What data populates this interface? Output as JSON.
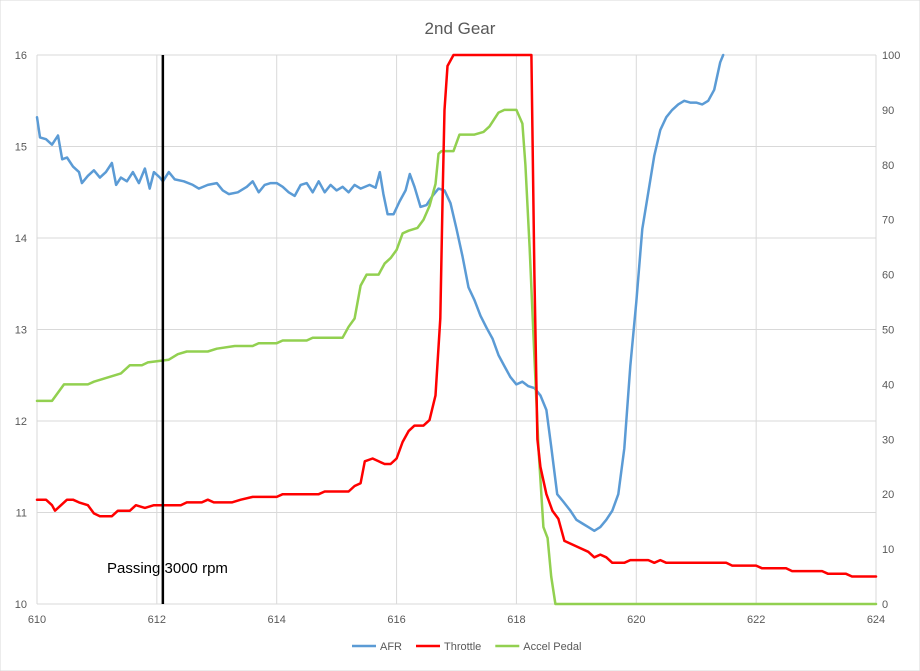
{
  "chart_data": {
    "type": "line",
    "title": "2nd Gear",
    "xlim": [
      610,
      624
    ],
    "x_ticks": [
      "610",
      "612",
      "614",
      "616",
      "618",
      "620",
      "622",
      "624"
    ],
    "y_left_lim": [
      10,
      16
    ],
    "y_left_ticks": [
      "10",
      "11",
      "12",
      "13",
      "14",
      "15",
      "16"
    ],
    "y_right_lim": [
      0,
      100
    ],
    "y_right_ticks": [
      "0",
      "10",
      "20",
      "30",
      "40",
      "50",
      "60",
      "70",
      "80",
      "90",
      "100"
    ],
    "grid": true,
    "legend_position": "bottom",
    "annotation": {
      "text": "Passing 3000 rpm",
      "x": 612.1
    },
    "series": [
      {
        "name": "AFR",
        "axis": "left",
        "color": "#5b9bd5",
        "points": [
          [
            610.0,
            15.32
          ],
          [
            610.05,
            15.1
          ],
          [
            610.15,
            15.08
          ],
          [
            610.25,
            15.02
          ],
          [
            610.35,
            15.12
          ],
          [
            610.42,
            14.86
          ],
          [
            610.5,
            14.88
          ],
          [
            610.6,
            14.78
          ],
          [
            610.7,
            14.72
          ],
          [
            610.75,
            14.6
          ],
          [
            610.85,
            14.68
          ],
          [
            610.95,
            14.74
          ],
          [
            611.05,
            14.66
          ],
          [
            611.15,
            14.72
          ],
          [
            611.25,
            14.82
          ],
          [
            611.32,
            14.58
          ],
          [
            611.4,
            14.66
          ],
          [
            611.5,
            14.62
          ],
          [
            611.6,
            14.72
          ],
          [
            611.7,
            14.6
          ],
          [
            611.8,
            14.76
          ],
          [
            611.88,
            14.54
          ],
          [
            611.95,
            14.72
          ],
          [
            612.05,
            14.66
          ],
          [
            612.1,
            14.62
          ],
          [
            612.2,
            14.72
          ],
          [
            612.3,
            14.64
          ],
          [
            612.45,
            14.62
          ],
          [
            612.6,
            14.58
          ],
          [
            612.7,
            14.54
          ],
          [
            612.85,
            14.58
          ],
          [
            613.0,
            14.6
          ],
          [
            613.1,
            14.52
          ],
          [
            613.2,
            14.48
          ],
          [
            613.35,
            14.5
          ],
          [
            613.5,
            14.56
          ],
          [
            613.6,
            14.62
          ],
          [
            613.7,
            14.5
          ],
          [
            613.8,
            14.58
          ],
          [
            613.9,
            14.6
          ],
          [
            614.0,
            14.6
          ],
          [
            614.1,
            14.56
          ],
          [
            614.2,
            14.5
          ],
          [
            614.3,
            14.46
          ],
          [
            614.4,
            14.58
          ],
          [
            614.5,
            14.6
          ],
          [
            614.6,
            14.5
          ],
          [
            614.7,
            14.62
          ],
          [
            614.8,
            14.5
          ],
          [
            614.9,
            14.58
          ],
          [
            615.0,
            14.52
          ],
          [
            615.1,
            14.56
          ],
          [
            615.2,
            14.5
          ],
          [
            615.3,
            14.58
          ],
          [
            615.4,
            14.54
          ],
          [
            615.55,
            14.58
          ],
          [
            615.65,
            14.55
          ],
          [
            615.72,
            14.72
          ],
          [
            615.78,
            14.48
          ],
          [
            615.85,
            14.26
          ],
          [
            615.95,
            14.26
          ],
          [
            616.05,
            14.4
          ],
          [
            616.15,
            14.52
          ],
          [
            616.22,
            14.7
          ],
          [
            616.3,
            14.56
          ],
          [
            616.4,
            14.34
          ],
          [
            616.5,
            14.36
          ],
          [
            616.6,
            14.46
          ],
          [
            616.7,
            14.54
          ],
          [
            616.8,
            14.52
          ],
          [
            616.9,
            14.38
          ],
          [
            617.0,
            14.1
          ],
          [
            617.1,
            13.8
          ],
          [
            617.2,
            13.46
          ],
          [
            617.3,
            13.32
          ],
          [
            617.4,
            13.15
          ],
          [
            617.5,
            13.02
          ],
          [
            617.6,
            12.9
          ],
          [
            617.7,
            12.72
          ],
          [
            617.8,
            12.6
          ],
          [
            617.9,
            12.48
          ],
          [
            618.0,
            12.4
          ],
          [
            618.1,
            12.43
          ],
          [
            618.2,
            12.38
          ],
          [
            618.3,
            12.36
          ],
          [
            618.4,
            12.28
          ],
          [
            618.5,
            12.12
          ],
          [
            618.58,
            11.72
          ],
          [
            618.68,
            11.2
          ],
          [
            618.78,
            11.12
          ],
          [
            618.9,
            11.02
          ],
          [
            619.0,
            10.92
          ],
          [
            619.1,
            10.88
          ],
          [
            619.2,
            10.84
          ],
          [
            619.3,
            10.8
          ],
          [
            619.4,
            10.84
          ],
          [
            619.5,
            10.92
          ],
          [
            619.6,
            11.02
          ],
          [
            619.7,
            11.2
          ],
          [
            619.8,
            11.7
          ],
          [
            619.9,
            12.6
          ],
          [
            620.0,
            13.3
          ],
          [
            620.1,
            14.1
          ],
          [
            620.2,
            14.5
          ],
          [
            620.3,
            14.9
          ],
          [
            620.4,
            15.18
          ],
          [
            620.5,
            15.32
          ],
          [
            620.6,
            15.4
          ],
          [
            620.7,
            15.46
          ],
          [
            620.8,
            15.5
          ],
          [
            620.9,
            15.48
          ],
          [
            621.0,
            15.48
          ],
          [
            621.1,
            15.46
          ],
          [
            621.2,
            15.5
          ],
          [
            621.3,
            15.62
          ],
          [
            621.4,
            15.92
          ],
          [
            621.45,
            16.0
          ]
        ]
      },
      {
        "name": "Throttle",
        "axis": "right",
        "color": "#ff0000",
        "points": [
          [
            610.0,
            19
          ],
          [
            610.15,
            19
          ],
          [
            610.25,
            18
          ],
          [
            610.3,
            17
          ],
          [
            610.4,
            18
          ],
          [
            610.5,
            19
          ],
          [
            610.6,
            19
          ],
          [
            610.7,
            18.5
          ],
          [
            610.85,
            18
          ],
          [
            610.95,
            16.5
          ],
          [
            611.05,
            16
          ],
          [
            611.25,
            16
          ],
          [
            611.35,
            17
          ],
          [
            611.55,
            17
          ],
          [
            611.65,
            18
          ],
          [
            611.8,
            17.5
          ],
          [
            611.95,
            18
          ],
          [
            612.1,
            18
          ],
          [
            612.4,
            18
          ],
          [
            612.5,
            18.5
          ],
          [
            612.75,
            18.5
          ],
          [
            612.85,
            19
          ],
          [
            612.95,
            18.5
          ],
          [
            613.25,
            18.5
          ],
          [
            613.4,
            19
          ],
          [
            613.6,
            19.5
          ],
          [
            614.0,
            19.5
          ],
          [
            614.1,
            20
          ],
          [
            614.7,
            20
          ],
          [
            614.8,
            20.5
          ],
          [
            615.2,
            20.5
          ],
          [
            615.3,
            21.5
          ],
          [
            615.4,
            22
          ],
          [
            615.47,
            26
          ],
          [
            615.6,
            26.5
          ],
          [
            615.7,
            26
          ],
          [
            615.8,
            25.5
          ],
          [
            615.9,
            25.5
          ],
          [
            616.0,
            26.5
          ],
          [
            616.1,
            29.5
          ],
          [
            616.2,
            31.5
          ],
          [
            616.3,
            32.5
          ],
          [
            616.45,
            32.5
          ],
          [
            616.55,
            33.5
          ],
          [
            616.65,
            38
          ],
          [
            616.73,
            52
          ],
          [
            616.77,
            75
          ],
          [
            616.8,
            90
          ],
          [
            616.85,
            98
          ],
          [
            616.95,
            100
          ],
          [
            618.25,
            100
          ],
          [
            618.3,
            60
          ],
          [
            618.35,
            30
          ],
          [
            618.4,
            25
          ],
          [
            618.5,
            20
          ],
          [
            618.6,
            17
          ],
          [
            618.7,
            15.5
          ],
          [
            618.8,
            11.5
          ],
          [
            619.0,
            10.5
          ],
          [
            619.2,
            9.5
          ],
          [
            619.3,
            8.5
          ],
          [
            619.4,
            9
          ],
          [
            619.5,
            8.5
          ],
          [
            619.6,
            7.5
          ],
          [
            619.8,
            7.5
          ],
          [
            619.9,
            8
          ],
          [
            620.2,
            8
          ],
          [
            620.3,
            7.5
          ],
          [
            620.4,
            8
          ],
          [
            620.5,
            7.5
          ],
          [
            621.5,
            7.5
          ],
          [
            621.6,
            7
          ],
          [
            622.0,
            7
          ],
          [
            622.1,
            6.5
          ],
          [
            622.5,
            6.5
          ],
          [
            622.6,
            6
          ],
          [
            623.1,
            6
          ],
          [
            623.2,
            5.5
          ],
          [
            623.5,
            5.5
          ],
          [
            623.6,
            5
          ],
          [
            624.0,
            5
          ]
        ]
      },
      {
        "name": "Accel Pedal",
        "axis": "right",
        "color": "#92d050",
        "points": [
          [
            610.0,
            37
          ],
          [
            610.25,
            37
          ],
          [
            610.35,
            38.5
          ],
          [
            610.45,
            40
          ],
          [
            610.6,
            40
          ],
          [
            610.85,
            40
          ],
          [
            610.95,
            40.5
          ],
          [
            611.1,
            41
          ],
          [
            611.25,
            41.5
          ],
          [
            611.4,
            42
          ],
          [
            611.55,
            43.5
          ],
          [
            611.75,
            43.5
          ],
          [
            611.85,
            44
          ],
          [
            612.2,
            44.5
          ],
          [
            612.35,
            45.5
          ],
          [
            612.5,
            46
          ],
          [
            612.85,
            46
          ],
          [
            613.0,
            46.5
          ],
          [
            613.3,
            47
          ],
          [
            613.6,
            47
          ],
          [
            613.7,
            47.5
          ],
          [
            614.0,
            47.5
          ],
          [
            614.1,
            48
          ],
          [
            614.5,
            48
          ],
          [
            614.6,
            48.5
          ],
          [
            615.1,
            48.5
          ],
          [
            615.2,
            50.5
          ],
          [
            615.3,
            52
          ],
          [
            615.4,
            58
          ],
          [
            615.5,
            60
          ],
          [
            615.7,
            60
          ],
          [
            615.8,
            62
          ],
          [
            615.9,
            63
          ],
          [
            616.0,
            64.5
          ],
          [
            616.1,
            67.5
          ],
          [
            616.2,
            68
          ],
          [
            616.35,
            68.5
          ],
          [
            616.45,
            70
          ],
          [
            616.55,
            72.5
          ],
          [
            616.65,
            76.5
          ],
          [
            616.7,
            82
          ],
          [
            616.75,
            82.5
          ],
          [
            616.95,
            82.5
          ],
          [
            617.05,
            85.5
          ],
          [
            617.3,
            85.5
          ],
          [
            617.45,
            86
          ],
          [
            617.55,
            87
          ],
          [
            617.7,
            89.5
          ],
          [
            617.8,
            90
          ],
          [
            618.0,
            90
          ],
          [
            618.1,
            87.5
          ],
          [
            618.15,
            80
          ],
          [
            618.22,
            65
          ],
          [
            618.3,
            45
          ],
          [
            618.37,
            28
          ],
          [
            618.45,
            14
          ],
          [
            618.52,
            12
          ],
          [
            618.58,
            5
          ],
          [
            618.65,
            0
          ],
          [
            624.0,
            0
          ]
        ]
      }
    ]
  }
}
